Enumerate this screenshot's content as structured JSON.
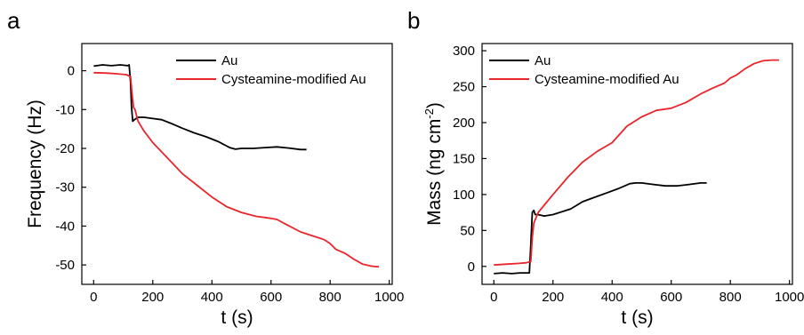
{
  "panels": [
    {
      "letter": "a"
    },
    {
      "letter": "b"
    }
  ],
  "chart_data": [
    {
      "type": "line",
      "xlabel": "t (s)",
      "ylabel": "Frequency (Hz)",
      "xlim": [
        -40,
        1010
      ],
      "ylim": [
        -55,
        7
      ],
      "xticks": [
        0,
        200,
        400,
        600,
        800,
        1000
      ],
      "yticks": [
        0,
        -10,
        -20,
        -30,
        -40,
        -50
      ],
      "legend_position": "top-right",
      "series": [
        {
          "name": "Au",
          "color": "#000000",
          "x": [
            0,
            30,
            60,
            90,
            115,
            120,
            125,
            128,
            132,
            140,
            150,
            170,
            200,
            230,
            260,
            300,
            340,
            380,
            420,
            460,
            480,
            500,
            540,
            580,
            620,
            660,
            700,
            720
          ],
          "y": [
            1.2,
            1.5,
            1.3,
            1.5,
            1.3,
            1.5,
            -3,
            -9,
            -13,
            -12.5,
            -12,
            -12,
            -12.3,
            -12.6,
            -13.5,
            -14.8,
            -16,
            -17,
            -18.2,
            -19.8,
            -20.2,
            -20,
            -20,
            -19.8,
            -19.6,
            -19.9,
            -20.3,
            -20.3
          ]
        },
        {
          "name": "Cysteamine-modified Au",
          "color": "#e8262b",
          "x": [
            0,
            40,
            80,
            110,
            125,
            130,
            135,
            140,
            150,
            170,
            200,
            250,
            300,
            350,
            400,
            450,
            500,
            550,
            600,
            620,
            650,
            700,
            740,
            780,
            800,
            820,
            850,
            880,
            910,
            940,
            965
          ],
          "y": [
            -0.5,
            -0.6,
            -0.8,
            -1,
            -1.5,
            -6,
            -9.5,
            -10,
            -13,
            -15.5,
            -18.5,
            -22.5,
            -26.5,
            -29.5,
            -32.5,
            -35,
            -36.5,
            -37.5,
            -38,
            -38.3,
            -39.5,
            -41.5,
            -42.5,
            -43.5,
            -44.5,
            -46,
            -47,
            -48.5,
            -49.8,
            -50.3,
            -50.5
          ]
        }
      ]
    },
    {
      "type": "line",
      "xlabel": "t (s)",
      "ylabel": "Mass (ng cm-2)",
      "ylabel_parts": [
        "Mass (ng cm",
        "-2",
        ")"
      ],
      "xlim": [
        -40,
        1010
      ],
      "ylim": [
        -25,
        310
      ],
      "xticks": [
        0,
        200,
        400,
        600,
        800,
        1000
      ],
      "yticks": [
        0,
        50,
        100,
        150,
        200,
        250,
        300
      ],
      "legend_position": "top-left",
      "series": [
        {
          "name": "Au",
          "color": "#000000",
          "x": [
            0,
            30,
            60,
            90,
            120,
            125,
            130,
            135,
            140,
            150,
            170,
            200,
            230,
            260,
            300,
            340,
            380,
            420,
            460,
            480,
            500,
            540,
            580,
            620,
            660,
            700,
            720
          ],
          "y": [
            -10,
            -9,
            -10,
            -9,
            -9,
            30,
            75,
            78,
            72,
            72,
            70,
            72,
            76,
            80,
            90,
            96,
            102,
            108,
            115,
            116,
            116,
            114,
            112,
            112,
            114,
            116,
            116
          ]
        },
        {
          "name": "Cysteamine-modified Au",
          "color": "#e8262b",
          "x": [
            0,
            40,
            80,
            110,
            125,
            130,
            135,
            140,
            150,
            170,
            200,
            250,
            300,
            350,
            400,
            450,
            500,
            550,
            600,
            650,
            700,
            740,
            780,
            800,
            820,
            850,
            880,
            910,
            940,
            965
          ],
          "y": [
            2,
            3,
            4,
            5,
            7,
            40,
            60,
            65,
            75,
            85,
            100,
            124,
            145,
            160,
            172,
            195,
            208,
            217,
            220,
            228,
            240,
            248,
            255,
            262,
            266,
            275,
            282,
            286,
            287,
            287
          ]
        }
      ]
    }
  ]
}
